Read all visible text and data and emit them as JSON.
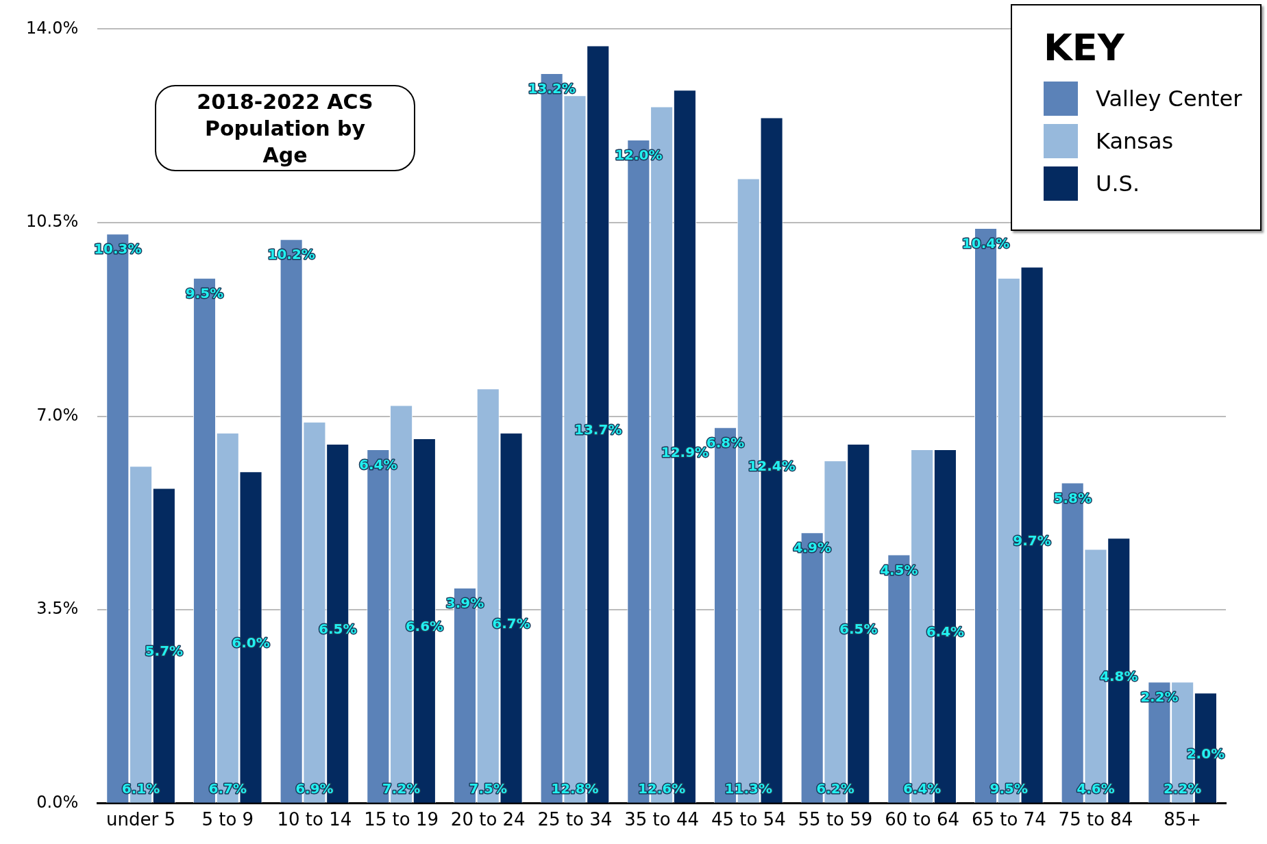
{
  "chart_data": {
    "type": "bar",
    "title": "2018-2022 ACS Population by Age",
    "legend_title": "KEY",
    "categories": [
      "under 5",
      "5 to 9",
      "10 to 14",
      "15 to 19",
      "20 to 24",
      "25 to 34",
      "35 to 44",
      "45 to 54",
      "55 to 59",
      "60 to 64",
      "65 to 74",
      "75 to 84",
      "85+"
    ],
    "series": [
      {
        "name": "Valley Center",
        "color": "#5b82b8",
        "values": [
          10.3,
          9.5,
          10.2,
          6.4,
          3.9,
          13.2,
          12.0,
          6.8,
          4.9,
          4.5,
          10.4,
          5.8,
          2.2
        ],
        "value_labels": [
          "10.3%",
          "9.5%",
          "10.2%",
          "6.4%",
          "3.9%",
          "13.2%",
          "12.0%",
          "6.8%",
          "4.9%",
          "4.5%",
          "10.4%",
          "5.8%",
          "2.2%"
        ]
      },
      {
        "name": "Kansas",
        "color": "#97b9dc",
        "values": [
          6.1,
          6.7,
          6.9,
          7.2,
          7.5,
          12.8,
          12.6,
          11.3,
          6.2,
          6.4,
          9.5,
          4.6,
          2.2
        ],
        "value_labels": [
          "6.1%",
          "6.7%",
          "6.9%",
          "7.2%",
          "7.5%",
          "12.8%",
          "12.6%",
          "11.3%",
          "6.2%",
          "6.4%",
          "9.5%",
          "4.6%",
          "2.2%"
        ]
      },
      {
        "name": "U.S.",
        "color": "#042a60",
        "values": [
          5.7,
          6.0,
          6.5,
          6.6,
          6.7,
          13.7,
          12.9,
          12.4,
          6.5,
          6.4,
          9.7,
          4.8,
          2.0
        ],
        "value_labels": [
          "5.7%",
          "6.0%",
          "6.5%",
          "6.6%",
          "6.7%",
          "13.7%",
          "12.9%",
          "12.4%",
          "6.5%",
          "6.4%",
          "9.7%",
          "4.8%",
          "2.0%"
        ]
      }
    ],
    "ylim": [
      0,
      14
    ],
    "yticks": [
      {
        "value": 0,
        "label": "0.0%"
      },
      {
        "value": 3.5,
        "label": "3.5%"
      },
      {
        "value": 7,
        "label": "7.0%"
      },
      {
        "value": 10.5,
        "label": "10.5%"
      },
      {
        "value": 14,
        "label": "14.0%"
      }
    ],
    "grid": "y",
    "legend": "top right"
  }
}
